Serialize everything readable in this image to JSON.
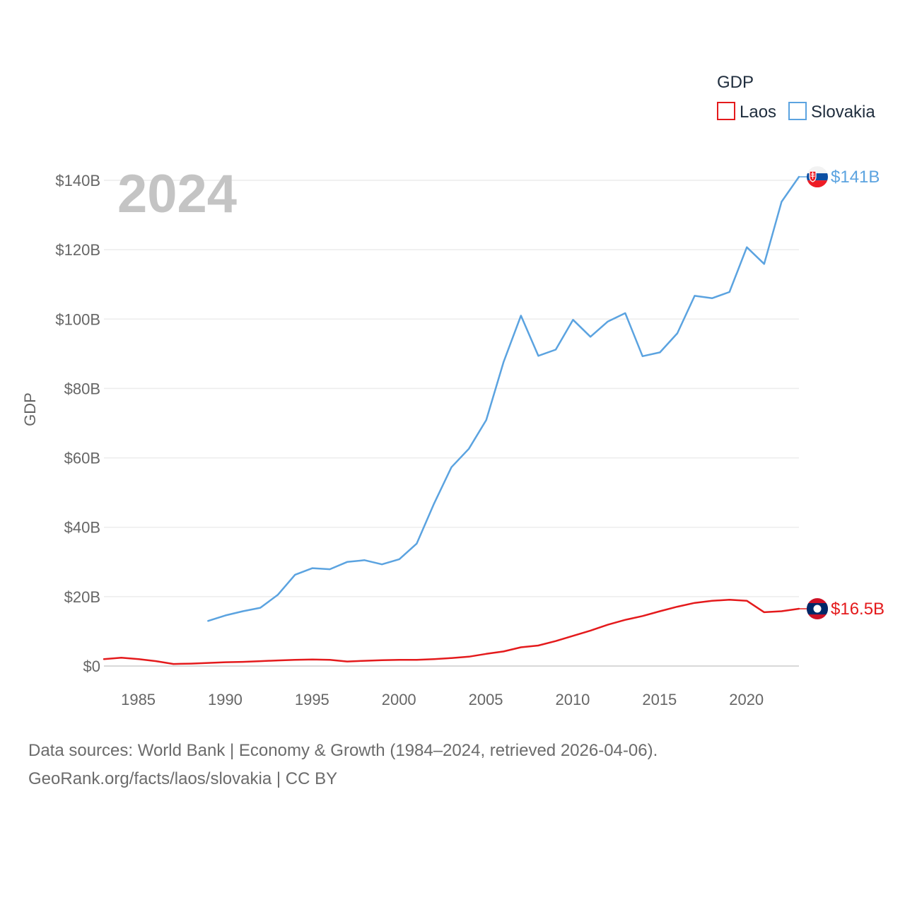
{
  "chart_data": {
    "type": "line",
    "year_label": "2024",
    "ylabel": "GDP",
    "xlabel": "",
    "legend": {
      "title": "GDP",
      "placement": "top-right"
    },
    "xlim": [
      1984,
      2024
    ],
    "ylim": [
      0,
      140
    ],
    "x_ticks": [
      "1985",
      "1990",
      "1995",
      "2000",
      "2005",
      "2010",
      "2015",
      "2020"
    ],
    "x_tick_values": [
      1985,
      1990,
      1995,
      2000,
      2005,
      2010,
      2015,
      2020
    ],
    "y_ticks": [
      "$0",
      "$20B",
      "$40B",
      "$60B",
      "$80B",
      "$100B",
      "$120B",
      "$140B"
    ],
    "y_tick_values": [
      0,
      20,
      40,
      60,
      80,
      100,
      120,
      140
    ],
    "y_unit": "billion USD",
    "series": [
      {
        "name": "Laos",
        "color": "#e41a1c",
        "end_label": "$16.5B",
        "flag": "laos-flag-icon",
        "x": [
          1984,
          1985,
          1986,
          1987,
          1988,
          1989,
          1990,
          1991,
          1992,
          1993,
          1994,
          1995,
          1996,
          1997,
          1998,
          1999,
          2000,
          2001,
          2002,
          2003,
          2004,
          2005,
          2006,
          2007,
          2008,
          2009,
          2010,
          2011,
          2012,
          2013,
          2014,
          2015,
          2016,
          2017,
          2018,
          2019,
          2020,
          2021,
          2022,
          2023,
          2024
        ],
        "values": [
          2.0,
          2.4,
          2.0,
          1.4,
          0.6,
          0.7,
          0.9,
          1.1,
          1.2,
          1.4,
          1.6,
          1.8,
          1.9,
          1.8,
          1.3,
          1.5,
          1.7,
          1.8,
          1.8,
          2.0,
          2.3,
          2.7,
          3.5,
          4.2,
          5.4,
          5.9,
          7.2,
          8.7,
          10.2,
          11.9,
          13.3,
          14.4,
          15.8,
          17.1,
          18.2,
          18.8,
          19.1,
          18.8,
          15.5,
          15.8,
          16.5
        ]
      },
      {
        "name": "Slovakia",
        "color": "#5ba3e0",
        "end_label": "$141B",
        "flag": "slovakia-flag-icon",
        "x": [
          1990,
          1991,
          1992,
          1993,
          1994,
          1995,
          1996,
          1997,
          1998,
          1999,
          2000,
          2001,
          2002,
          2003,
          2004,
          2005,
          2006,
          2007,
          2008,
          2009,
          2010,
          2011,
          2012,
          2013,
          2014,
          2015,
          2016,
          2017,
          2018,
          2019,
          2020,
          2021,
          2022,
          2023,
          2024
        ],
        "values": [
          13.0,
          14.6,
          15.8,
          16.8,
          20.5,
          26.3,
          28.2,
          27.9,
          30.0,
          30.5,
          29.3,
          30.8,
          35.3,
          46.8,
          57.3,
          62.6,
          70.9,
          87.6,
          101.0,
          89.4,
          91.2,
          99.8,
          94.9,
          99.3,
          101.7,
          89.3,
          90.4,
          95.9,
          106.7,
          106.0,
          107.8,
          120.7,
          115.9,
          133.8,
          141.0
        ]
      }
    ]
  },
  "footer": {
    "line1": "Data sources: World Bank | Economy & Growth (1984–2024, retrieved 2026-04-06).",
    "line2": "GeoRank.org/facts/laos/slovakia | CC BY"
  }
}
